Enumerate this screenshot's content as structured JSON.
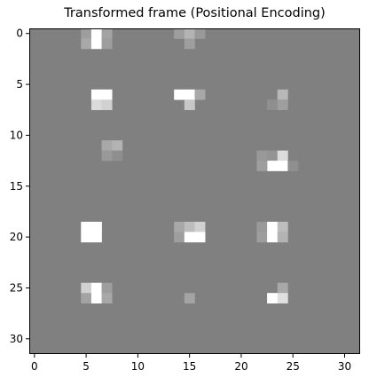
{
  "chart_data": {
    "type": "heatmap",
    "title": "Transformed frame (Positional Encoding)",
    "xlabel": "",
    "ylabel": "",
    "xlim": [
      -0.5,
      31.5
    ],
    "ylim": [
      31.5,
      -0.5
    ],
    "grid": false,
    "colormap": "gray",
    "background_value": 0.5,
    "x_ticks": [
      0,
      5,
      10,
      15,
      20,
      25,
      30
    ],
    "y_ticks": [
      0,
      5,
      10,
      15,
      20,
      25,
      30
    ],
    "cells": [
      [
        5,
        0,
        0.62
      ],
      [
        6,
        0,
        1.0
      ],
      [
        7,
        0,
        0.64
      ],
      [
        5,
        1,
        0.66
      ],
      [
        6,
        1,
        1.0
      ],
      [
        7,
        1,
        0.62
      ],
      [
        14,
        0,
        0.62
      ],
      [
        15,
        0,
        0.7
      ],
      [
        16,
        0,
        0.6
      ],
      [
        15,
        1,
        0.62
      ],
      [
        6,
        6,
        1.0
      ],
      [
        7,
        6,
        1.0
      ],
      [
        6,
        7,
        0.86
      ],
      [
        7,
        7,
        0.82
      ],
      [
        14,
        6,
        1.0
      ],
      [
        15,
        6,
        1.0
      ],
      [
        16,
        6,
        0.66
      ],
      [
        15,
        7,
        0.78
      ],
      [
        24,
        6,
        0.72
      ],
      [
        23,
        7,
        0.56
      ],
      [
        24,
        7,
        0.62
      ],
      [
        7,
        11,
        0.66
      ],
      [
        8,
        11,
        0.7
      ],
      [
        7,
        12,
        0.6
      ],
      [
        8,
        12,
        0.56
      ],
      [
        22,
        12,
        0.6
      ],
      [
        23,
        12,
        0.58
      ],
      [
        24,
        12,
        0.86
      ],
      [
        23,
        13,
        1.0
      ],
      [
        24,
        13,
        1.0
      ],
      [
        22,
        13,
        0.62
      ],
      [
        25,
        13,
        0.56
      ],
      [
        5,
        19,
        1.0
      ],
      [
        6,
        19,
        1.0
      ],
      [
        5,
        20,
        1.0
      ],
      [
        6,
        20,
        1.0
      ],
      [
        14,
        19,
        0.66
      ],
      [
        15,
        19,
        0.74
      ],
      [
        16,
        19,
        0.82
      ],
      [
        14,
        20,
        0.62
      ],
      [
        15,
        20,
        1.0
      ],
      [
        16,
        20,
        1.0
      ],
      [
        22,
        19,
        0.6
      ],
      [
        23,
        19,
        1.0
      ],
      [
        24,
        19,
        0.74
      ],
      [
        22,
        20,
        0.62
      ],
      [
        23,
        20,
        1.0
      ],
      [
        24,
        20,
        0.7
      ],
      [
        5,
        25,
        0.82
      ],
      [
        6,
        25,
        1.0
      ],
      [
        7,
        25,
        0.62
      ],
      [
        5,
        26,
        0.64
      ],
      [
        6,
        26,
        1.0
      ],
      [
        7,
        26,
        0.66
      ],
      [
        15,
        26,
        0.64
      ],
      [
        24,
        25,
        0.66
      ],
      [
        23,
        26,
        1.0
      ],
      [
        24,
        26,
        0.88
      ]
    ]
  }
}
